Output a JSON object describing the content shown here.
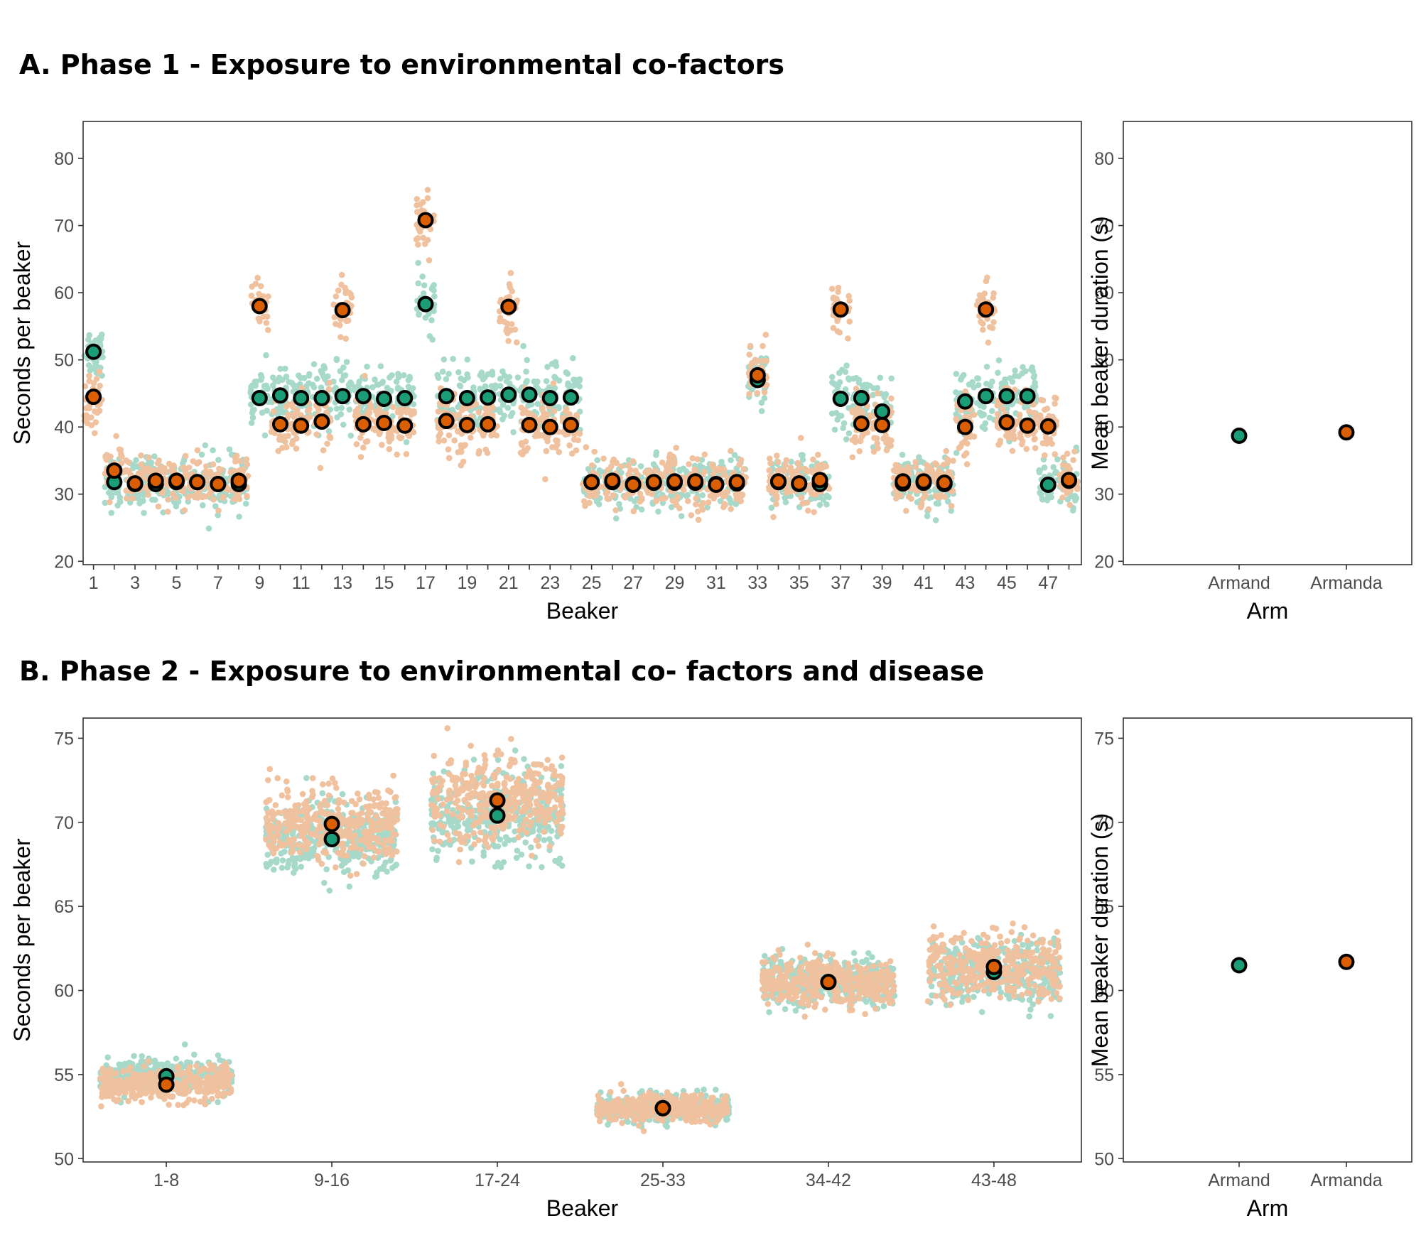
{
  "colors": {
    "Armand": "#1b9e77",
    "Armanda": "#d95f02",
    "outline": "#000000",
    "frame": "#333333"
  },
  "panels": [
    {
      "title": "A. Phase 1 - Exposure to environmental co-factors"
    },
    {
      "title": "B. Phase 2 - Exposure to environmental co- factors and disease"
    }
  ],
  "chart_data": [
    {
      "id": "A-main",
      "type": "scatter",
      "xlabel": "Beaker",
      "ylabel": "Seconds per beaker",
      "ylim": [
        19.5,
        85.5
      ],
      "yticks": [
        20,
        30,
        40,
        50,
        60,
        70,
        80
      ],
      "xlim": [
        0.5,
        48.6
      ],
      "xtick_values": [
        1,
        3,
        5,
        7,
        9,
        11,
        13,
        15,
        17,
        19,
        21,
        23,
        25,
        27,
        29,
        31,
        33,
        35,
        37,
        39,
        41,
        43,
        45,
        47
      ],
      "categories": [
        "1",
        "3",
        "5",
        "7",
        "9",
        "11",
        "13",
        "15",
        "17",
        "19",
        "21",
        "23",
        "25",
        "27",
        "29",
        "31",
        "33",
        "35",
        "37",
        "39",
        "41",
        "43",
        "45",
        "47"
      ],
      "grid": false,
      "legend": "none",
      "series": [
        {
          "name": "Armand",
          "x": [
            1,
            2,
            3,
            4,
            5,
            6,
            7,
            8,
            9,
            10,
            11,
            12,
            13,
            14,
            15,
            16,
            17,
            18,
            19,
            20,
            21,
            22,
            23,
            24,
            25,
            26,
            27,
            28,
            29,
            30,
            31,
            32,
            33,
            34,
            35,
            36,
            37,
            38,
            39,
            40,
            41,
            42,
            43,
            44,
            45,
            46,
            47,
            48
          ],
          "y": [
            51.2,
            31.8,
            31.5,
            31.5,
            31.8,
            31.8,
            31.5,
            31.5,
            44.3,
            44.7,
            44.3,
            44.3,
            44.6,
            44.6,
            44.2,
            44.3,
            58.3,
            44.6,
            44.3,
            44.4,
            44.8,
            44.8,
            44.3,
            44.4,
            31.8,
            31.8,
            31.5,
            31.7,
            31.7,
            31.7,
            31.5,
            31.6,
            47.0,
            31.8,
            31.5,
            31.5,
            44.2,
            44.3,
            42.3,
            31.6,
            31.7,
            31.5,
            43.8,
            44.6,
            44.6,
            44.6,
            31.4,
            32.0
          ]
        },
        {
          "name": "Armanda",
          "x": [
            1,
            2,
            3,
            4,
            5,
            6,
            7,
            8,
            9,
            10,
            11,
            12,
            13,
            14,
            15,
            16,
            17,
            18,
            19,
            20,
            21,
            22,
            23,
            24,
            25,
            26,
            27,
            28,
            29,
            30,
            31,
            32,
            33,
            34,
            35,
            36,
            37,
            38,
            39,
            40,
            41,
            42,
            43,
            44,
            45,
            46,
            47,
            48
          ],
          "y": [
            44.5,
            33.5,
            31.6,
            32.0,
            32.0,
            31.8,
            31.5,
            32.0,
            58.0,
            40.4,
            40.2,
            40.8,
            57.4,
            40.4,
            40.6,
            40.2,
            70.8,
            40.9,
            40.3,
            40.4,
            57.9,
            40.3,
            40.0,
            40.3,
            31.8,
            32.0,
            31.4,
            31.8,
            31.9,
            31.9,
            31.4,
            31.8,
            47.7,
            31.9,
            31.6,
            32.1,
            57.5,
            40.5,
            40.3,
            31.9,
            31.9,
            31.7,
            40.0,
            57.5,
            40.7,
            40.2,
            40.1,
            32.1
          ]
        }
      ]
    },
    {
      "id": "A-side",
      "type": "scatter",
      "xlabel": "Arm",
      "ylabel": "Mean beaker duration (s)",
      "ylim": [
        19.5,
        85.5
      ],
      "yticks": [
        20,
        30,
        40,
        50,
        60,
        70,
        80
      ],
      "categories": [
        "Armand",
        "Armanda"
      ],
      "values": [
        38.7,
        39.2
      ],
      "grid": false,
      "legend": "none"
    },
    {
      "id": "B-main",
      "type": "scatter",
      "xlabel": "Beaker",
      "ylabel": "Seconds per beaker",
      "ylim": [
        49.8,
        76.2
      ],
      "yticks": [
        50,
        55,
        60,
        65,
        70,
        75
      ],
      "categories": [
        "1-8",
        "9-16",
        "17-24",
        "25-33",
        "34-42",
        "43-48"
      ],
      "grid": false,
      "legend": "none",
      "series": [
        {
          "name": "Armand",
          "values": [
            54.9,
            69.0,
            70.4,
            53.0,
            60.5,
            61.1
          ]
        },
        {
          "name": "Armanda",
          "values": [
            54.4,
            69.9,
            71.3,
            53.0,
            60.5,
            61.4
          ]
        }
      ]
    },
    {
      "id": "B-side",
      "type": "scatter",
      "xlabel": "Arm",
      "ylabel": "Mean beaker duration (s)",
      "ylim": [
        49.8,
        76.2
      ],
      "yticks": [
        50,
        55,
        60,
        65,
        70,
        75
      ],
      "categories": [
        "Armand",
        "Armanda"
      ],
      "values": [
        61.5,
        61.7
      ],
      "grid": false,
      "legend": "none"
    }
  ]
}
